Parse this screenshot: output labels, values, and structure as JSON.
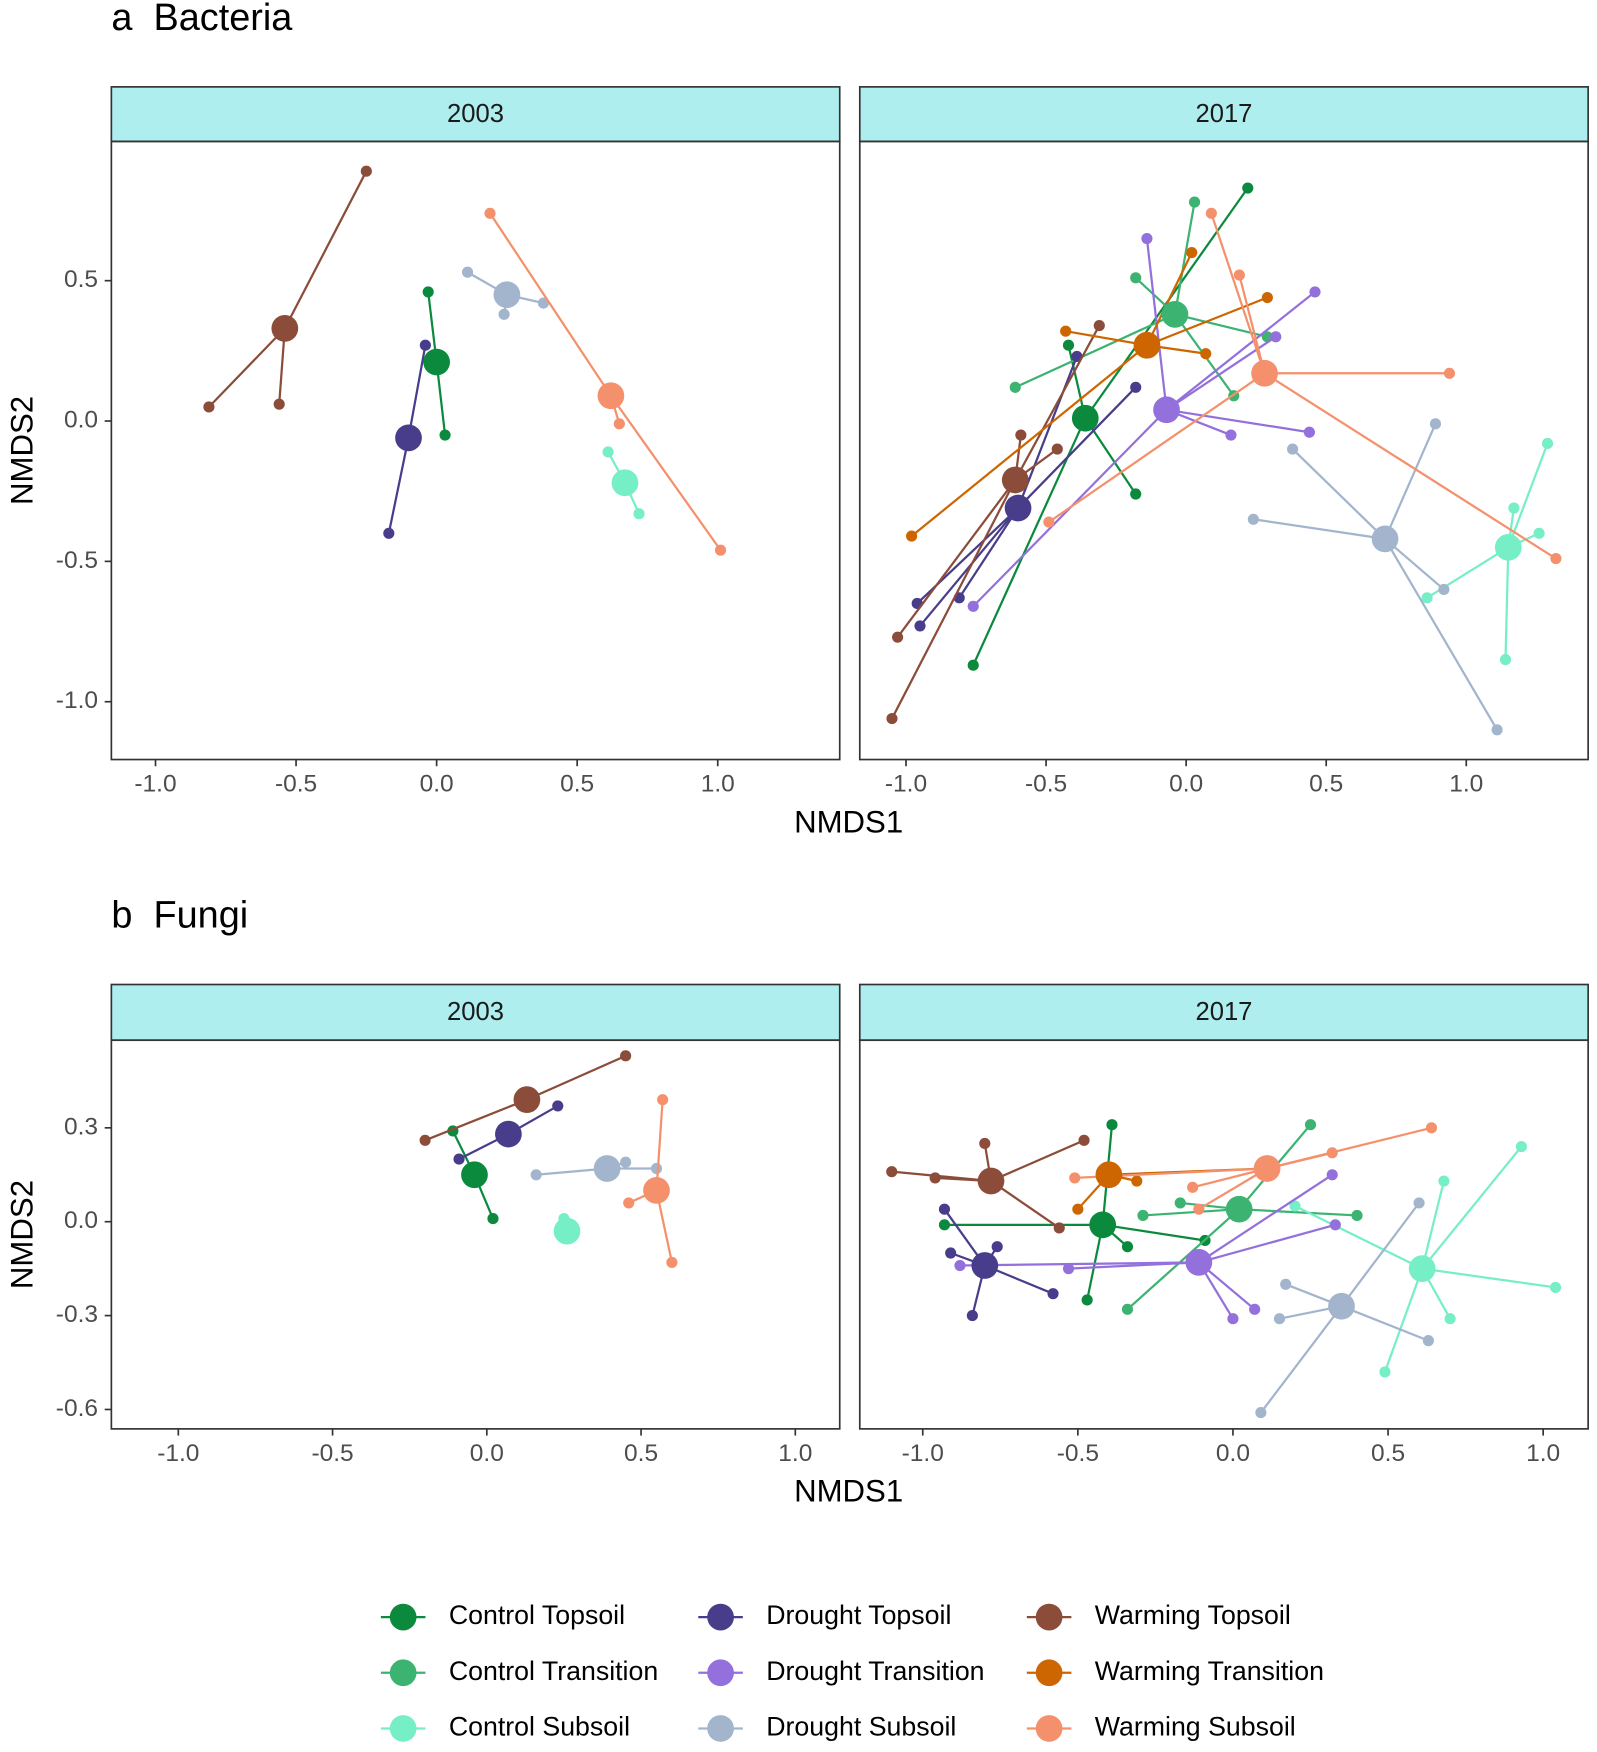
{
  "chart_data": [
    {
      "type": "scatter",
      "title": "a  Bacteria",
      "facet": "2003",
      "x_label": "NMDS1",
      "y_label": "NMDS2",
      "xlim": [
        -1.157,
        1.434
      ],
      "ylim": [
        -1.206,
        0.996
      ],
      "xticks": [
        {
          "value": -1,
          "label": "-1.0"
        },
        -0.5,
        {
          "value": 0,
          "label": "0.0"
        },
        0.5,
        {
          "value": 1,
          "label": "1.0"
        }
      ],
      "yticks": [
        {
          "value": -1,
          "label": "-1.0"
        },
        -0.5,
        {
          "value": 0,
          "label": "0.0"
        },
        0.5
      ],
      "series": [
        {
          "name": "Control Topsoil",
          "color": "#0b8a3e",
          "centroid_x": 0.0,
          "centroid_y": 0.21,
          "x": [
            -0.03,
            0.03
          ],
          "y": [
            0.46,
            -0.05
          ]
        },
        {
          "name": "Control Subsoil",
          "color": "#76eec6",
          "centroid_x": 0.67,
          "centroid_y": -0.22,
          "x": [
            0.61,
            0.72
          ],
          "y": [
            -0.11,
            -0.33
          ]
        },
        {
          "name": "Drought Topsoil",
          "color": "#483d8b",
          "centroid_x": -0.1,
          "centroid_y": -0.06,
          "x": [
            -0.04,
            -0.17
          ],
          "y": [
            0.27,
            -0.4
          ]
        },
        {
          "name": "Drought Subsoil",
          "color": "#a2b5cd",
          "centroid_x": 0.25,
          "centroid_y": 0.45,
          "x": [
            0.11,
            0.38,
            0.24
          ],
          "y": [
            0.53,
            0.42,
            0.38
          ]
        },
        {
          "name": "Warming Topsoil",
          "color": "#8b4c39",
          "centroid_x": -0.54,
          "centroid_y": 0.33,
          "x": [
            -0.25,
            -0.81,
            -0.56
          ],
          "y": [
            0.89,
            0.05,
            0.06
          ]
        },
        {
          "name": "Warming Subsoil",
          "color": "#f4916c",
          "centroid_x": 0.62,
          "centroid_y": 0.09,
          "x": [
            0.19,
            1.01,
            0.65
          ],
          "y": [
            0.74,
            -0.46,
            -0.01
          ]
        }
      ]
    },
    {
      "type": "scatter",
      "facet": "2017",
      "xlim": [
        -1.165,
        1.435
      ],
      "ylim": [
        -1.206,
        0.996
      ],
      "xticks": [
        {
          "value": -1,
          "label": "-1.0"
        },
        -0.5,
        {
          "value": 0,
          "label": "0.0"
        },
        0.5,
        {
          "value": 1,
          "label": "1.0"
        }
      ],
      "series": [
        {
          "name": "Control Topsoil",
          "color": "#0b8a3e",
          "centroid_x": -0.36,
          "centroid_y": 0.01,
          "x": [
            -0.76,
            -0.18,
            0.22,
            -0.42
          ],
          "y": [
            -0.87,
            -0.26,
            0.83,
            0.27
          ]
        },
        {
          "name": "Control Transition",
          "color": "#3cb371",
          "centroid_x": -0.04,
          "centroid_y": 0.38,
          "x": [
            0.03,
            -0.18,
            0.17,
            -0.61,
            0.29
          ],
          "y": [
            0.78,
            0.51,
            0.09,
            0.12,
            0.3
          ]
        },
        {
          "name": "Control Subsoil",
          "color": "#76eec6",
          "centroid_x": 1.15,
          "centroid_y": -0.45,
          "x": [
            1.29,
            1.14,
            1.26,
            0.86,
            1.17
          ],
          "y": [
            -0.08,
            -0.85,
            -0.4,
            -0.63,
            -0.31
          ]
        },
        {
          "name": "Drought Topsoil",
          "color": "#483d8b",
          "centroid_x": -0.6,
          "centroid_y": -0.31,
          "x": [
            -0.95,
            -0.81,
            -0.96,
            -0.39,
            -0.18
          ],
          "y": [
            -0.73,
            -0.63,
            -0.65,
            0.23,
            0.12
          ]
        },
        {
          "name": "Drought Transition",
          "color": "#9370db",
          "centroid_x": -0.07,
          "centroid_y": 0.04,
          "x": [
            -0.14,
            0.46,
            -0.76,
            0.16,
            0.44,
            0.32
          ],
          "y": [
            0.65,
            0.46,
            -0.66,
            -0.05,
            -0.04,
            0.3
          ]
        },
        {
          "name": "Drought Subsoil",
          "color": "#a2b5cd",
          "centroid_x": 0.71,
          "centroid_y": -0.42,
          "x": [
            0.89,
            1.11,
            0.24,
            0.38,
            0.92
          ],
          "y": [
            -0.01,
            -1.1,
            -0.35,
            -0.1,
            -0.6
          ]
        },
        {
          "name": "Warming Topsoil",
          "color": "#8b4c39",
          "centroid_x": -0.61,
          "centroid_y": -0.21,
          "x": [
            -1.05,
            -1.03,
            -0.59,
            -0.31,
            -0.46
          ],
          "y": [
            -1.06,
            -0.77,
            -0.05,
            0.34,
            -0.1
          ]
        },
        {
          "name": "Warming Transition",
          "color": "#cd6600",
          "centroid_x": -0.14,
          "centroid_y": 0.27,
          "x": [
            -0.98,
            0.29,
            0.02,
            -0.43,
            0.07
          ],
          "y": [
            -0.41,
            0.44,
            0.6,
            0.32,
            0.24
          ]
        },
        {
          "name": "Warming Subsoil",
          "color": "#f4916c",
          "centroid_x": 0.28,
          "centroid_y": 0.17,
          "x": [
            0.09,
            1.32,
            0.94,
            -0.49,
            0.19
          ],
          "y": [
            0.74,
            -0.49,
            0.17,
            -0.36,
            0.52
          ]
        }
      ]
    },
    {
      "type": "scatter",
      "title": "b  Fungi",
      "facet": "2003",
      "x_label": "NMDS1",
      "y_label": "NMDS2",
      "xlim": [
        -1.217,
        1.144
      ],
      "ylim": [
        -0.662,
        0.58
      ],
      "xticks": [
        {
          "value": -1,
          "label": "-1.0"
        },
        -0.5,
        {
          "value": 0,
          "label": "0.0"
        },
        0.5,
        {
          "value": 1,
          "label": "1.0"
        }
      ],
      "yticks": [
        -0.6,
        -0.3,
        {
          "value": 0,
          "label": "0.0"
        },
        0.3
      ],
      "series": [
        {
          "name": "Control Topsoil",
          "color": "#0b8a3e",
          "centroid_x": -0.04,
          "centroid_y": 0.15,
          "x": [
            0.02,
            -0.11
          ],
          "y": [
            0.01,
            0.29
          ]
        },
        {
          "name": "Control Subsoil",
          "color": "#76eec6",
          "centroid_x": 0.26,
          "centroid_y": -0.03,
          "x": [
            0.25
          ],
          "y": [
            0.01
          ]
        },
        {
          "name": "Drought Topsoil",
          "color": "#483d8b",
          "centroid_x": 0.07,
          "centroid_y": 0.28,
          "x": [
            0.23,
            -0.09
          ],
          "y": [
            0.37,
            0.2
          ]
        },
        {
          "name": "Drought Subsoil",
          "color": "#a2b5cd",
          "centroid_x": 0.39,
          "centroid_y": 0.17,
          "x": [
            0.16,
            0.45,
            0.55
          ],
          "y": [
            0.15,
            0.19,
            0.17
          ]
        },
        {
          "name": "Warming Topsoil",
          "color": "#8b4c39",
          "centroid_x": 0.13,
          "centroid_y": 0.39,
          "x": [
            0.45,
            -0.2
          ],
          "y": [
            0.53,
            0.26
          ]
        },
        {
          "name": "Warming Subsoil",
          "color": "#f4916c",
          "centroid_x": 0.55,
          "centroid_y": 0.1,
          "x": [
            0.57,
            0.6,
            0.46
          ],
          "y": [
            0.39,
            -0.13,
            0.06
          ]
        }
      ]
    },
    {
      "type": "scatter",
      "facet": "2017",
      "xlim": [
        -1.203,
        1.145
      ],
      "ylim": [
        -0.662,
        0.58
      ],
      "xticks": [
        {
          "value": -1,
          "label": "-1.0"
        },
        -0.5,
        {
          "value": 0,
          "label": "0.0"
        },
        0.5,
        {
          "value": 1,
          "label": "1.0"
        }
      ],
      "series": [
        {
          "name": "Control Topsoil",
          "color": "#0b8a3e",
          "centroid_x": -0.42,
          "centroid_y": -0.01,
          "x": [
            -0.39,
            -0.47,
            -0.93,
            -0.09,
            -0.34
          ],
          "y": [
            0.31,
            -0.25,
            -0.01,
            -0.06,
            -0.08
          ]
        },
        {
          "name": "Control Transition",
          "color": "#3cb371",
          "centroid_x": 0.02,
          "centroid_y": 0.04,
          "x": [
            0.25,
            -0.34,
            0.4,
            -0.29,
            -0.17
          ],
          "y": [
            0.31,
            -0.28,
            0.02,
            0.02,
            0.06
          ]
        },
        {
          "name": "Control Subsoil",
          "color": "#76eec6",
          "centroid_x": 0.61,
          "centroid_y": -0.15,
          "x": [
            0.93,
            1.04,
            0.49,
            0.68,
            0.7,
            0.2
          ],
          "y": [
            0.24,
            -0.21,
            -0.48,
            0.13,
            -0.31,
            0.05
          ]
        },
        {
          "name": "Drought Topsoil",
          "color": "#483d8b",
          "centroid_x": -0.8,
          "centroid_y": -0.14,
          "x": [
            -0.84,
            -0.58,
            -0.93,
            -0.76,
            -0.91
          ],
          "y": [
            -0.3,
            -0.23,
            0.04,
            -0.08,
            -0.1
          ]
        },
        {
          "name": "Drought Transition",
          "color": "#9370db",
          "centroid_x": -0.11,
          "centroid_y": -0.13,
          "x": [
            0.32,
            0.0,
            -0.88,
            0.07,
            0.33,
            -0.53
          ],
          "y": [
            0.15,
            -0.31,
            -0.14,
            -0.28,
            -0.01,
            -0.15
          ]
        },
        {
          "name": "Drought Subsoil",
          "color": "#a2b5cd",
          "centroid_x": 0.35,
          "centroid_y": -0.27,
          "x": [
            0.6,
            0.09,
            0.63,
            0.15,
            0.17
          ],
          "y": [
            0.06,
            -0.61,
            -0.38,
            -0.31,
            -0.2
          ]
        },
        {
          "name": "Warming Topsoil",
          "color": "#8b4c39",
          "centroid_x": -0.78,
          "centroid_y": 0.13,
          "x": [
            -1.1,
            -0.8,
            -0.48,
            -0.56,
            -0.96
          ],
          "y": [
            0.16,
            0.25,
            0.26,
            -0.02,
            0.14
          ]
        },
        {
          "name": "Warming Transition",
          "color": "#cd6600",
          "centroid_x": -0.4,
          "centroid_y": 0.15,
          "x": [
            -0.5,
            0.11,
            -0.31
          ],
          "y": [
            0.04,
            0.17,
            0.13
          ]
        },
        {
          "name": "Warming Subsoil",
          "color": "#f4916c",
          "centroid_x": 0.11,
          "centroid_y": 0.17,
          "x": [
            0.64,
            -0.51,
            0.32,
            -0.11,
            -0.13
          ],
          "y": [
            0.3,
            0.14,
            0.22,
            0.04,
            0.11
          ]
        }
      ]
    }
  ]
}
